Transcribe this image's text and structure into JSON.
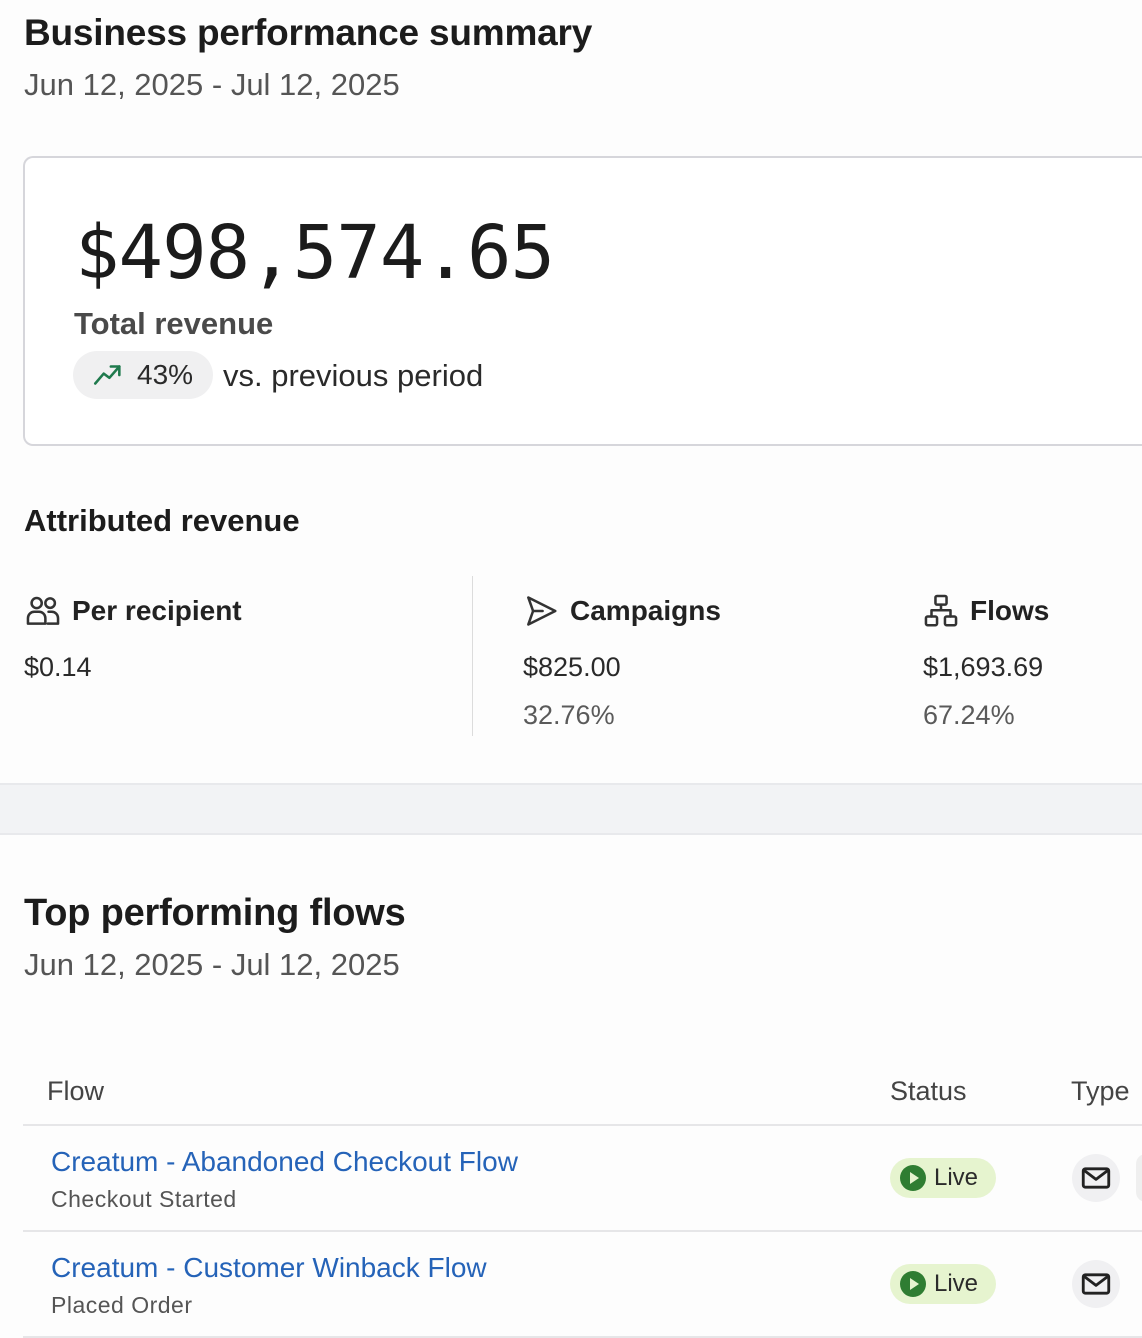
{
  "summary": {
    "title": "Business performance summary",
    "date_range": "Jun 12, 2025 - Jul 12, 2025"
  },
  "revenue": {
    "total": "$498,574.65",
    "label": "Total revenue",
    "change_pct": "43%",
    "change_icon": "trending-up-icon",
    "comparison_text": "vs. previous period",
    "accent_color": "#1f7a4d"
  },
  "attributed": {
    "title": "Attributed revenue",
    "metrics": [
      {
        "icon": "users-icon",
        "label": "Per recipient",
        "value": "$0.14",
        "share": ""
      },
      {
        "icon": "send-icon",
        "label": "Campaigns",
        "value": "$825.00",
        "share": "32.76%"
      },
      {
        "icon": "flow-tree-icon",
        "label": "Flows",
        "value": "$1,693.69",
        "share": "67.24%"
      }
    ]
  },
  "top_flows": {
    "title": "Top performing flows",
    "date_range": "Jun 12, 2025 - Jul 12, 2025",
    "columns": [
      "Flow",
      "Status",
      "Type"
    ],
    "rows": [
      {
        "name": "Creatum - Abandoned Checkout Flow",
        "trigger": "Checkout Started",
        "status": "Live",
        "type_icon": "email-icon"
      },
      {
        "name": "Creatum - Customer Winback Flow",
        "trigger": "Placed Order",
        "status": "Live",
        "type_icon": "email-icon"
      }
    ],
    "link_color": "#2563b8",
    "live_color": "#2f7d32"
  }
}
